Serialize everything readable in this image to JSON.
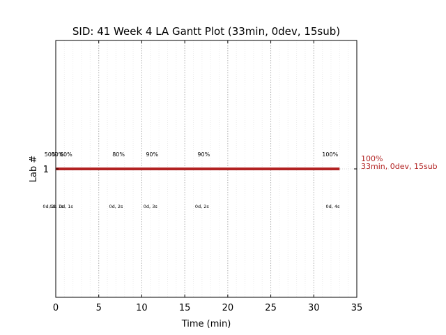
{
  "chart_data": {
    "type": "gantt",
    "title": "SID: 41 Week 4 LA Gantt Plot (33min, 0dev, 15sub)",
    "xlabel": "Time (min)",
    "ylabel": "Lab #",
    "xlim": [
      0,
      35
    ],
    "x_ticks": [
      "0",
      "5",
      "10",
      "15",
      "20",
      "25",
      "30",
      "35"
    ],
    "x_tick_values": [
      0,
      5,
      10,
      15,
      20,
      25,
      30,
      35
    ],
    "y_ticks": [
      "1"
    ],
    "bar_color": "#b22222",
    "grid": "vertical dotted",
    "bars": [
      {
        "lab": "1",
        "start": 0,
        "end": 33,
        "end_label_pct": "100%",
        "end_label_summary": "33min, 0dev, 15sub"
      }
    ],
    "annotations_above": [
      {
        "x": -0.6,
        "text": "50%"
      },
      {
        "x": 0.2,
        "text": "60%"
      },
      {
        "x": 1.2,
        "text": "60%"
      },
      {
        "x": 7.3,
        "text": "80%"
      },
      {
        "x": 11.2,
        "text": "90%"
      },
      {
        "x": 17.2,
        "text": "90%"
      },
      {
        "x": 31.9,
        "text": "100%"
      }
    ],
    "annotations_below": [
      {
        "x": -0.7,
        "text": "0d, 2s"
      },
      {
        "x": 0.1,
        "text": "0d, 1s"
      },
      {
        "x": 1.2,
        "text": "0d, 1s"
      },
      {
        "x": 7.0,
        "text": "0d, 2s"
      },
      {
        "x": 11.0,
        "text": "0d, 3s"
      },
      {
        "x": 17.0,
        "text": "0d, 2s"
      },
      {
        "x": 32.2,
        "text": "0d, 4s"
      }
    ]
  }
}
